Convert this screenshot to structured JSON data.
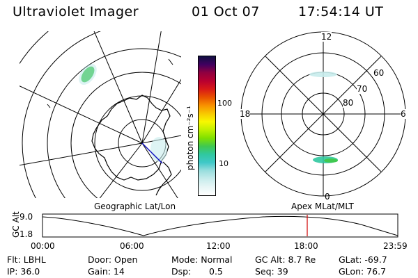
{
  "header": {
    "instrument": "Ultraviolet Imager",
    "date": "01 Oct 07",
    "time": "17:54:14 UT"
  },
  "colorbar": {
    "unit_label": "photon cm⁻²s⁻¹",
    "tick_100": "100",
    "tick_10": "10",
    "colors": [
      "#ffffff",
      "#e8f6f6",
      "#c8ecec",
      "#9adede",
      "#40c8c8",
      "#30c8a0",
      "#40c850",
      "#80e000",
      "#c0f000",
      "#f8f800",
      "#f8c800",
      "#f89000",
      "#e85000",
      "#d81818",
      "#b80030",
      "#900040",
      "#400060",
      "#101040"
    ]
  },
  "geo_map": {
    "label": "Geographic Lat/Lon"
  },
  "polar_map": {
    "label": "Apex  MLat/MLT",
    "mlt_labels": {
      "top": "12",
      "left": "18",
      "right": "6",
      "bottom": "0"
    },
    "lat_labels": {
      "l60": "60",
      "l70": "70",
      "l80": "80"
    }
  },
  "altitude_plot": {
    "ylabel": "GC Alt",
    "y_top": "9.0",
    "y_bottom": "1.8",
    "x_ticks": [
      "00:00",
      "06:00",
      "12:00",
      "18:00",
      "23:59"
    ],
    "current_time_marker_color": "#d00000"
  },
  "info": {
    "flt": "Flt: LBHL",
    "ip": "IP: 36.0",
    "door": "Door: Open",
    "gain": "Gain: 14",
    "mode": "Mode: Normal",
    "dsp_label": "Dsp:",
    "dsp_value": "0.5",
    "gc_alt": "GC Alt: 8.7 Re",
    "seq": "Seq: 39",
    "glat": "GLat: -69.7",
    "glon": "GLon:  76.7"
  }
}
